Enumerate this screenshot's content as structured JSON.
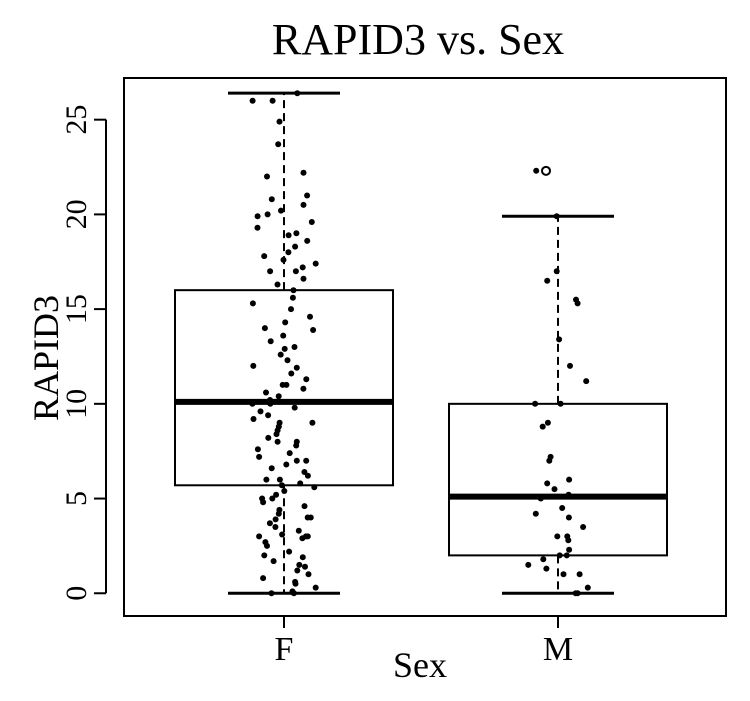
{
  "chart_data": {
    "type": "box",
    "title": "RAPID3 vs. Sex",
    "xlabel": "Sex",
    "ylabel": "RAPID3",
    "ylim": [
      -1.2,
      27.2
    ],
    "yticks": [
      0,
      5,
      10,
      15,
      20,
      25
    ],
    "categories": [
      "F",
      "M"
    ],
    "groups": [
      {
        "name": "F",
        "whisker_low": 0,
        "q1": 5.7,
        "median": 10.1,
        "q3": 16.0,
        "whisker_high": 26.4,
        "outliers": [],
        "points": [
          0,
          0,
          0.1,
          0.3,
          0.5,
          0.6,
          0.8,
          1.0,
          1.2,
          1.4,
          1.5,
          1.7,
          1.9,
          2.0,
          2.2,
          2.5,
          2.7,
          2.9,
          3.0,
          3.0,
          3.0,
          3.1,
          3.3,
          3.5,
          3.7,
          3.9,
          4.0,
          4.0,
          4.2,
          4.4,
          4.6,
          4.8,
          5.0,
          5.0,
          5.2,
          5.4,
          5.6,
          5.7,
          5.8,
          6.0,
          6.0,
          6.2,
          6.4,
          6.6,
          6.8,
          7.0,
          7.0,
          7.2,
          7.4,
          7.6,
          7.8,
          8.0,
          8.0,
          8.2,
          8.4,
          8.6,
          8.8,
          9.0,
          9.0,
          9.2,
          9.4,
          9.6,
          9.8,
          10.0,
          10.0,
          10.2,
          10.4,
          10.6,
          10.8,
          11.0,
          11.0,
          11.3,
          11.6,
          11.9,
          12.0,
          12.3,
          12.6,
          12.9,
          13.0,
          13.3,
          13.6,
          13.9,
          14.0,
          14.3,
          14.6,
          15.0,
          15.3,
          15.6,
          16.0,
          16.3,
          16.6,
          17.0,
          17.0,
          17.2,
          17.4,
          17.6,
          17.8,
          18.0,
          18.3,
          18.6,
          18.9,
          19.0,
          19.3,
          19.6,
          19.9,
          20.0,
          20.2,
          20.5,
          20.8,
          21.0,
          22.0,
          22.2,
          23.7,
          24.9,
          26.0,
          26.0,
          26.4
        ]
      },
      {
        "name": "M",
        "whisker_low": 0,
        "q1": 2.0,
        "median": 5.1,
        "q3": 10.0,
        "whisker_high": 19.9,
        "outliers": [
          22.3
        ],
        "points": [
          0,
          0,
          0.3,
          1.0,
          1.0,
          1.3,
          1.5,
          1.8,
          2.0,
          2.0,
          2.3,
          2.8,
          3.0,
          3.0,
          3.5,
          4.0,
          4.2,
          4.5,
          5.0,
          5.2,
          5.5,
          5.8,
          6.0,
          7.0,
          7.2,
          8.8,
          9.0,
          10.0,
          10.0,
          11.2,
          12.0,
          13.4,
          15.3,
          15.5,
          16.5,
          17.0,
          19.9,
          22.3
        ]
      }
    ],
    "grid": false,
    "legend": "none"
  }
}
